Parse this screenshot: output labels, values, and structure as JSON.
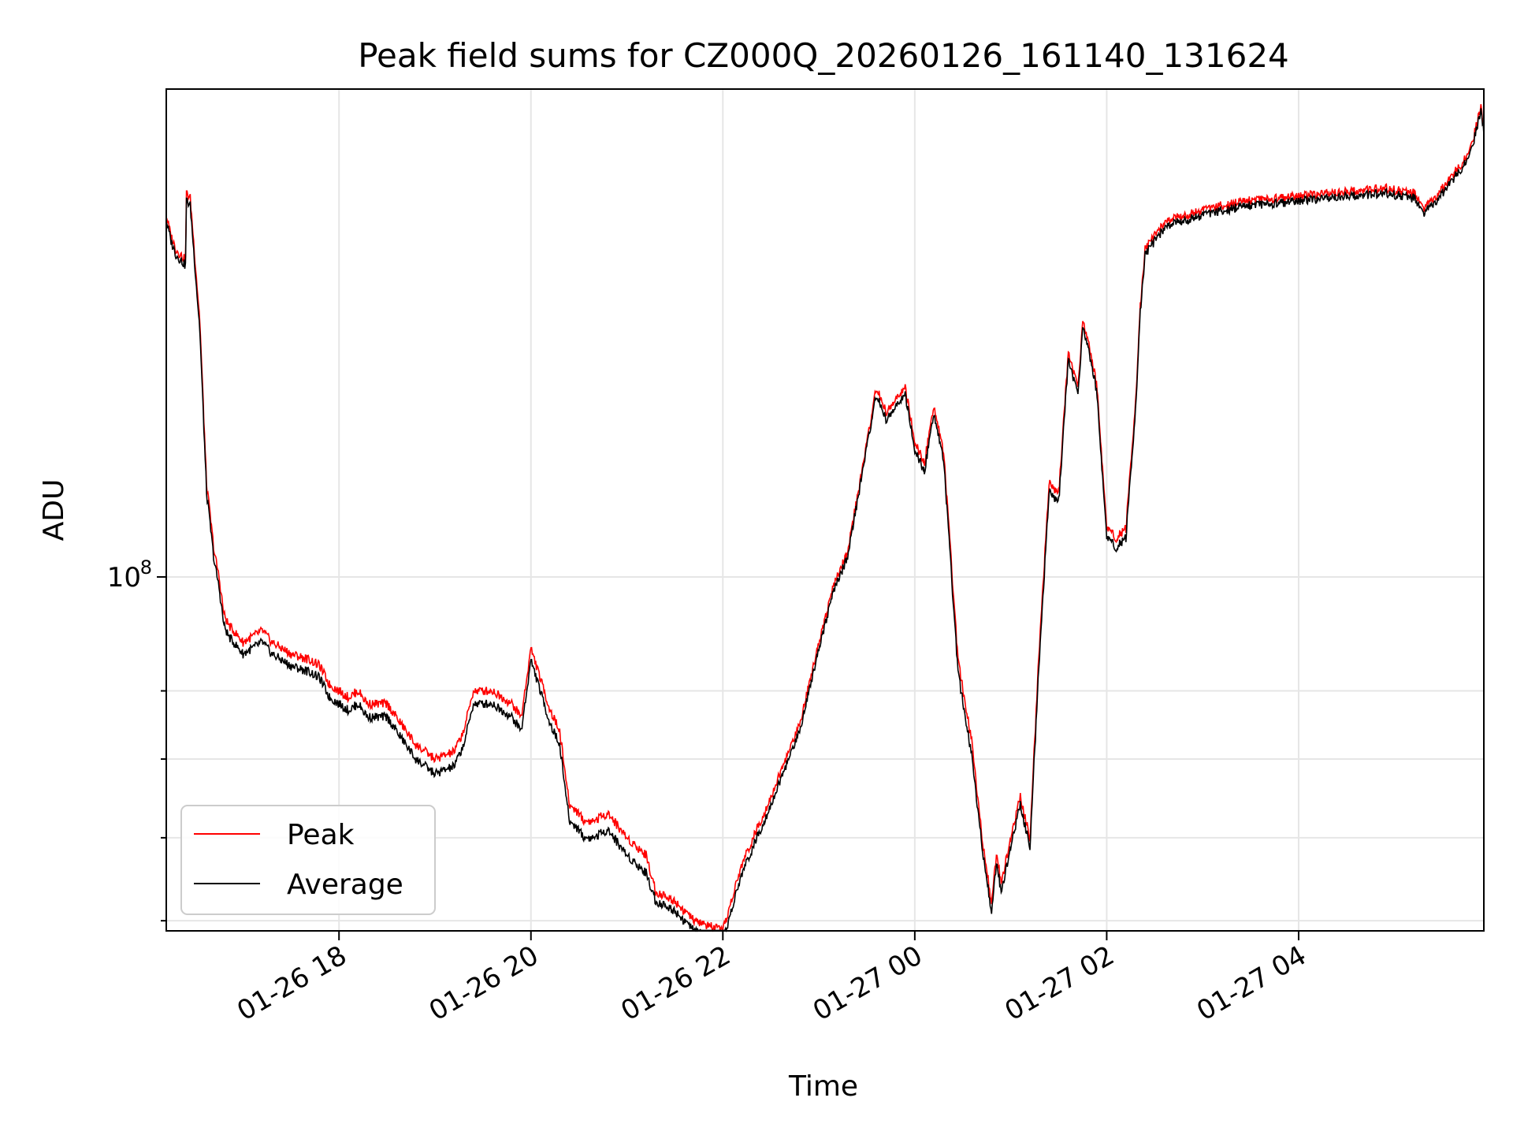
{
  "chart_data": {
    "type": "line",
    "title": "Peak field sums for CZ000Q_20260126_161140_131624",
    "xlabel": "Time",
    "ylabel": "ADU",
    "y_scale": "log",
    "ylim": [
      50000000,
      260000000
    ],
    "xlim_hours": [
      16.2,
      29.93
    ],
    "x_ticks": [
      {
        "hour": 18,
        "label": "01-26 18"
      },
      {
        "hour": 20,
        "label": "01-26 20"
      },
      {
        "hour": 22,
        "label": "01-26 22"
      },
      {
        "hour": 24,
        "label": "01-27 00"
      },
      {
        "hour": 26,
        "label": "01-27 02"
      },
      {
        "hour": 28,
        "label": "01-27 04"
      }
    ],
    "y_major_ticks": [
      {
        "value": 100000000,
        "label": "10",
        "exponent": "8"
      }
    ],
    "y_minor_ticks": [
      51000000,
      60000000,
      70000000,
      80000000
    ],
    "grid": true,
    "legend_position": "lower-left",
    "series": [
      {
        "name": "Peak",
        "color": "#ff0000",
        "x": [
          16.2,
          16.25,
          16.3,
          16.4,
          16.41,
          16.45,
          16.55,
          16.62,
          16.7,
          16.75,
          16.8,
          16.85,
          16.9,
          17.0,
          17.1,
          17.2,
          17.3,
          17.5,
          17.7,
          17.8,
          17.9,
          18.0,
          18.1,
          18.2,
          18.3,
          18.5,
          18.8,
          19.0,
          19.2,
          19.3,
          19.4,
          19.6,
          19.8,
          19.9,
          20.0,
          20.2,
          20.3,
          20.4,
          20.5,
          20.55,
          20.65,
          20.8,
          21.0,
          21.2,
          21.3,
          21.5,
          21.7,
          22.0,
          22.2,
          22.5,
          22.8,
          23.0,
          23.15,
          23.3,
          23.5,
          23.6,
          23.7,
          23.9,
          24.0,
          24.1,
          24.2,
          24.3,
          24.45,
          24.6,
          24.7,
          24.8,
          24.85,
          24.9,
          25.0,
          25.1,
          25.2,
          25.3,
          25.4,
          25.5,
          25.6,
          25.7,
          25.75,
          25.8,
          25.9,
          26.0,
          26.1,
          26.2,
          26.3,
          26.35,
          26.4,
          26.5,
          26.6,
          26.7,
          26.8,
          27.0,
          27.2,
          27.5,
          27.8,
          28.0,
          28.3,
          28.6,
          28.9,
          29.2,
          29.3,
          29.5,
          29.7,
          29.8,
          29.9,
          29.93
        ],
        "y": [
          203,
          195,
          190,
          186,
          212,
          210,
          165,
          120,
          105,
          100,
          93,
          91,
          90,
          88,
          89,
          90,
          88,
          86,
          85,
          84,
          81,
          80,
          79,
          80,
          78,
          78,
          72,
          70,
          71,
          74,
          80,
          80,
          78,
          76,
          87,
          77,
          74,
          64,
          63,
          62,
          62,
          63,
          60,
          58,
          54,
          53,
          51,
          50,
          57,
          65,
          75,
          88,
          98,
          105,
          130,
          145,
          138,
          145,
          130,
          125,
          140,
          128,
          85,
          72,
          60,
          53,
          58,
          55,
          60,
          65,
          60,
          88,
          120,
          118,
          155,
          145,
          165,
          160,
          145,
          110,
          108,
          110,
          140,
          170,
          190,
          195,
          200,
          202,
          203,
          205,
          207,
          209,
          210,
          211,
          212,
          213,
          214,
          212,
          205,
          214,
          225,
          232,
          252,
          240
        ]
      },
      {
        "name": "Average",
        "color": "#000000",
        "x": [
          16.2,
          16.25,
          16.3,
          16.4,
          16.41,
          16.45,
          16.55,
          16.62,
          16.7,
          16.75,
          16.8,
          16.85,
          16.9,
          17.0,
          17.1,
          17.2,
          17.3,
          17.5,
          17.7,
          17.8,
          17.9,
          18.0,
          18.1,
          18.2,
          18.3,
          18.5,
          18.8,
          19.0,
          19.2,
          19.3,
          19.4,
          19.6,
          19.8,
          19.9,
          20.0,
          20.2,
          20.3,
          20.4,
          20.5,
          20.55,
          20.65,
          20.8,
          21.0,
          21.2,
          21.3,
          21.5,
          21.7,
          22.0,
          22.2,
          22.5,
          22.8,
          23.0,
          23.15,
          23.3,
          23.5,
          23.6,
          23.7,
          23.9,
          24.0,
          24.1,
          24.2,
          24.3,
          24.45,
          24.6,
          24.7,
          24.8,
          24.85,
          24.9,
          25.0,
          25.1,
          25.2,
          25.3,
          25.4,
          25.5,
          25.6,
          25.7,
          25.75,
          25.8,
          25.9,
          26.0,
          26.1,
          26.2,
          26.3,
          26.35,
          26.4,
          26.5,
          26.6,
          26.7,
          26.8,
          27.0,
          27.2,
          27.5,
          27.8,
          28.0,
          28.3,
          28.6,
          28.9,
          29.2,
          29.3,
          29.5,
          29.7,
          29.8,
          29.9,
          29.93
        ],
        "y": [
          201,
          193,
          188,
          184,
          209,
          207,
          162,
          118,
          103,
          98,
          91,
          89,
          88,
          86,
          87,
          88,
          86,
          84,
          83,
          82,
          79,
          78,
          77,
          78,
          76,
          76,
          70,
          68,
          69,
          72,
          78,
          78,
          76,
          74,
          85,
          75,
          72,
          62,
          61,
          60,
          60,
          61,
          58,
          56,
          53,
          52,
          50,
          49,
          56,
          64,
          74,
          87,
          97,
          104,
          129,
          143,
          136,
          143,
          128,
          123,
          138,
          126,
          83,
          70,
          59,
          52,
          57,
          54,
          59,
          64,
          59,
          86,
          118,
          116,
          153,
          143,
          163,
          158,
          143,
          108,
          106,
          108,
          138,
          168,
          188,
          193,
          198,
          200,
          201,
          203,
          205,
          207,
          208,
          209,
          210,
          211,
          212,
          210,
          203,
          212,
          223,
          230,
          250,
          238
        ]
      }
    ],
    "y_units": "million ADU"
  }
}
